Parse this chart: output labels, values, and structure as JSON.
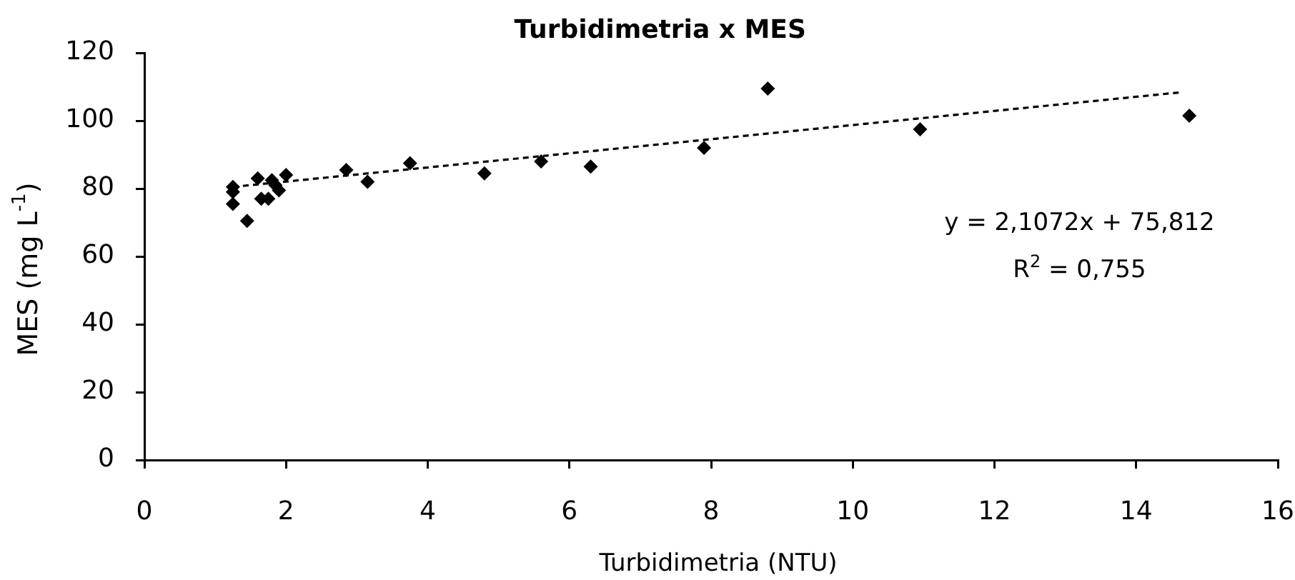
{
  "chart_data": {
    "type": "scatter",
    "title": "Turbidimetria x MES",
    "xlabel": "Turbidimetria (NTU)",
    "ylabel": "MES (mg L$^{-1}$)",
    "xlim": [
      0,
      16
    ],
    "xticks": [
      0,
      2,
      4,
      6,
      8,
      10,
      12,
      14,
      16
    ],
    "ylim": [
      0,
      120
    ],
    "yticks": [
      0,
      20,
      40,
      60,
      80,
      100,
      120
    ],
    "marker": "diamond",
    "series": [
      {
        "type": "scatter",
        "color": "#000000",
        "x": [
          1.25,
          1.25,
          1.25,
          1.45,
          1.6,
          1.65,
          1.75,
          1.8,
          1.85,
          1.9,
          2,
          2.85,
          3.15,
          3.75,
          4.8,
          5.6,
          6.3,
          7.9,
          8.8,
          10.95,
          14.75
        ],
        "values": [
          80.5,
          79,
          75.5,
          70.5,
          83,
          77,
          77,
          82.5,
          81,
          79.5,
          84,
          85.5,
          82,
          87.5,
          84.5,
          88,
          86.5,
          92,
          109.5,
          97.5,
          101.5
        ]
      },
      {
        "type": "line",
        "color": "#000000",
        "line_style": "dotted",
        "marker": "none",
        "x": [
          1.25,
          14.6
        ],
        "values": [
          80.5,
          108.3
        ]
      }
    ],
    "annotations": [
      "y = 2,1072x + 75,812",
      "R$^{2}$ = 0,755"
    ]
  }
}
